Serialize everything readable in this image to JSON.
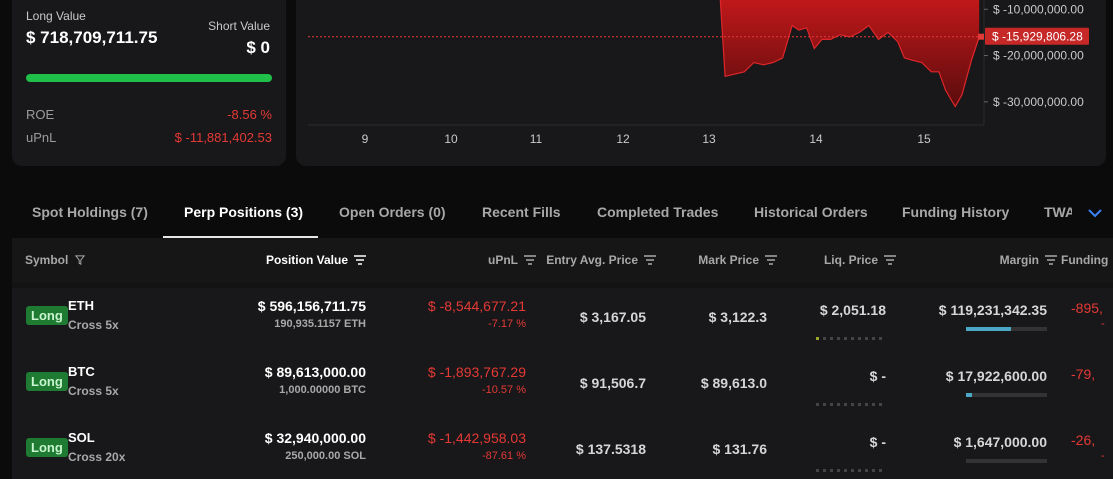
{
  "summary": {
    "long_label": "Long Value",
    "long_value": "$ 718,709,711.75",
    "short_label": "Short Value",
    "short_value": "$ 0",
    "roe_label": "ROE",
    "roe_value": "-8.56 %",
    "upnl_label": "uPnL",
    "upnl_value": "$ -11,881,402.53",
    "colors": {
      "long_bar": "#1fbf4a",
      "negative": "#e53935"
    }
  },
  "chart_data": {
    "type": "area",
    "title": "",
    "xlabel": "",
    "ylabel": "",
    "x_ticks": [
      "9",
      "10",
      "11",
      "12",
      "13",
      "14",
      "15"
    ],
    "y_ticks": [
      "$ -10,000,000.00",
      "$ -20,000,000.00",
      "$ -30,000,000.00"
    ],
    "current_value_label": "$ -15,929,806.28",
    "current_value": -15929806.28,
    "ylim": [
      -35000000,
      -8000000
    ],
    "series": [
      {
        "x": [
          12.8,
          12.85,
          12.95,
          13.05,
          13.15,
          13.25,
          13.35,
          13.45,
          13.55,
          13.62,
          13.7,
          13.78,
          13.86,
          13.95,
          14.05,
          14.15,
          14.25,
          14.35,
          14.45,
          14.55,
          14.65,
          14.72,
          14.8,
          14.9,
          15.0,
          15.08,
          15.15,
          15.25,
          15.32,
          15.42,
          15.5
        ],
        "y": [
          -8000000,
          -24500000,
          -24000000,
          -23500000,
          -21500000,
          -22000000,
          -21500000,
          -20500000,
          -13500000,
          -14500000,
          -14000000,
          -18500000,
          -16500000,
          -16500000,
          -15500000,
          -16000000,
          -15000000,
          -13500000,
          -16500000,
          -15000000,
          -17000000,
          -20500000,
          -21000000,
          -21500000,
          -23500000,
          -23500000,
          -27500000,
          -31000000,
          -28500000,
          -21000000,
          -16000000
        ]
      }
    ],
    "colors": {
      "area": "#b3191b",
      "current_line": "#e53935"
    }
  },
  "tabs": [
    {
      "label": "Spot Holdings (7)",
      "active": false
    },
    {
      "label": "Perp Positions (3)",
      "active": true
    },
    {
      "label": "Open Orders (0)",
      "active": false
    },
    {
      "label": "Recent Fills",
      "active": false
    },
    {
      "label": "Completed Trades",
      "active": false
    },
    {
      "label": "Historical Orders",
      "active": false
    },
    {
      "label": "Funding History",
      "active": false
    },
    {
      "label": "TWA",
      "active": false
    }
  ],
  "table": {
    "columns": [
      "Symbol",
      "Position Value",
      "uPnL",
      "Entry Avg. Price",
      "Mark Price",
      "Liq. Price",
      "Margin",
      "Funding"
    ],
    "rows": [
      {
        "side": "Long",
        "symbol": "ETH",
        "mode": "Cross 5x",
        "position_value": "$ 596,156,711.75",
        "size": "190,935.1157 ETH",
        "upnl": "$ -8,544,677.21",
        "upnl_pct": "-7.17 %",
        "entry": "$ 3,167.05",
        "mark": "$ 3,122.3",
        "liq": "$ 2,051.18",
        "liq_level": 0.1,
        "margin": "$ 119,231,342.35",
        "margin_fill": 0.55,
        "funding": "-895,",
        "funding_sub": "-"
      },
      {
        "side": "Long",
        "symbol": "BTC",
        "mode": "Cross 5x",
        "position_value": "$ 89,613,000.00",
        "size": "1,000.00000 BTC",
        "upnl": "$ -1,893,767.29",
        "upnl_pct": "-10.57 %",
        "entry": "$ 91,506.7",
        "mark": "$ 89,613.0",
        "liq": "$ -",
        "liq_level": 0,
        "margin": "$ 17,922,600.00",
        "margin_fill": 0.08,
        "funding": "-79,",
        "funding_sub": ""
      },
      {
        "side": "Long",
        "symbol": "SOL",
        "mode": "Cross 20x",
        "position_value": "$ 32,940,000.00",
        "size": "250,000.00 SOL",
        "upnl": "$ -1,442,958.03",
        "upnl_pct": "-87.61 %",
        "entry": "$ 137.5318",
        "mark": "$ 131.76",
        "liq": "$ -",
        "liq_level": 0,
        "margin": "$ 1,647,000.00",
        "margin_fill": 0.0,
        "funding": "-26,",
        "funding_sub": "-"
      }
    ]
  }
}
